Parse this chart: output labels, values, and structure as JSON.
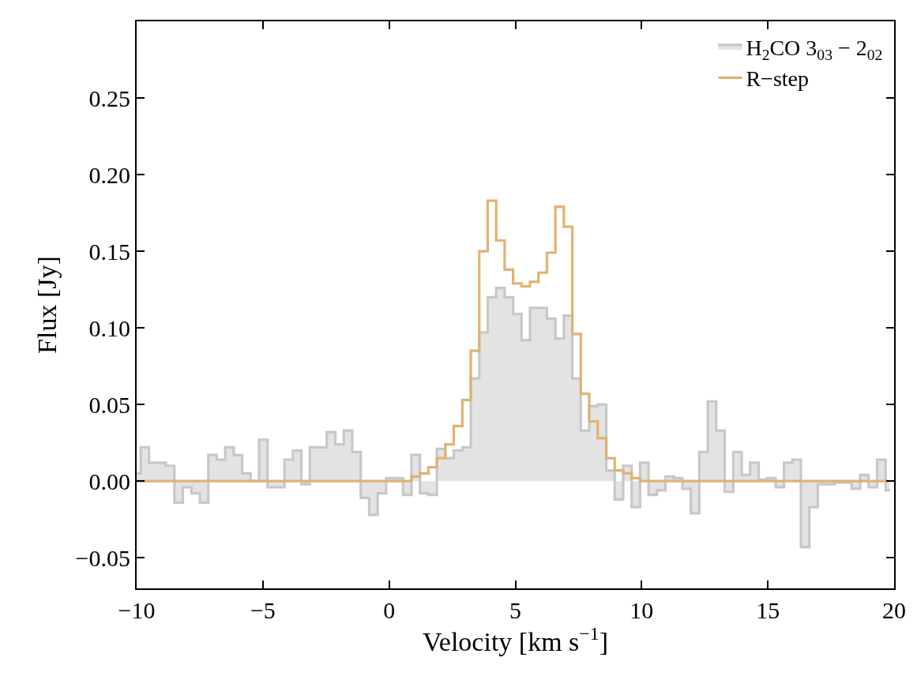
{
  "chart_data": {
    "type": "step",
    "xlabel": "Velocity [km s$^{−1}$]",
    "ylabel": "Flux [Jy]",
    "x": [
      -10,
      -9.68,
      -9.34,
      -9.01,
      -8.67,
      -8.34,
      -8.0,
      -7.66,
      -7.33,
      -6.99,
      -6.66,
      -6.32,
      -5.99,
      -5.65,
      -5.32,
      -4.98,
      -4.65,
      -4.31,
      -3.98,
      -3.64,
      -3.31,
      -2.97,
      -2.64,
      -2.3,
      -1.96,
      -1.63,
      -1.29,
      -0.96,
      -0.62,
      -0.29,
      0.05,
      0.38,
      0.72,
      1.05,
      1.39,
      1.72,
      2.06,
      2.39,
      2.73,
      3.07,
      3.4,
      3.74,
      4.07,
      4.41,
      4.74,
      5.08,
      5.41,
      5.75,
      6.08,
      6.42,
      6.75,
      7.09,
      7.42,
      7.76,
      8.09,
      8.43,
      8.77,
      9.1,
      9.44,
      9.77,
      10.11,
      10.44,
      10.78,
      11.11,
      11.45,
      11.78,
      12.12,
      12.45,
      12.79,
      13.12,
      13.46,
      13.8,
      14.13,
      14.47,
      14.8,
      15.14,
      15.47,
      15.81,
      16.14,
      16.48,
      16.81,
      17.15,
      17.48,
      17.82,
      18.15,
      18.49,
      18.82,
      19.16,
      19.5,
      19.83
    ],
    "series": [
      {
        "name": "H$_{2}$CO 3$_{03}$ − 2$_{02}$",
        "type": "area",
        "color": "#c8c8c8",
        "values": [
          0.005,
          0.022,
          0.012,
          0.012,
          0.01,
          -0.014,
          -0.004,
          -0.008,
          -0.014,
          0.017,
          0.014,
          0.022,
          0.017,
          0.005,
          0,
          0.027,
          -0.004,
          -0.004,
          0.014,
          0.02,
          -0.002,
          0.022,
          0.022,
          0.032,
          0.024,
          0.033,
          0.019,
          -0.011,
          -0.022,
          -0.008,
          0.002,
          0.002,
          -0.009,
          0.017,
          -0.008,
          -0.009,
          0.021,
          0.015,
          0.02,
          0.022,
          0.067,
          0.097,
          0.12,
          0.126,
          0.12,
          0.109,
          0.092,
          0.113,
          0.113,
          0.106,
          0.093,
          0.108,
          0.067,
          0.033,
          0.049,
          0.05,
          0.007,
          -0.012,
          0.01,
          -0.017,
          0.012,
          -0.009,
          -0.006,
          0.003,
          0.002,
          -0.005,
          -0.021,
          0.019,
          0.052,
          0.033,
          -0.007,
          0.019,
          0.004,
          0.012,
          0.001,
          0.002,
          -0.004,
          0.012,
          0.014,
          -0.043,
          -0.017,
          -0.002,
          -0.002,
          -0.001,
          -0.001,
          -0.005,
          0.004,
          -0.004,
          0.014,
          -0.006
        ]
      },
      {
        "name": "R−step",
        "color": "#e0b274",
        "values": [
          0,
          0,
          0,
          0,
          0,
          0,
          0,
          0,
          0,
          0,
          0,
          0,
          0,
          0,
          0,
          0,
          0,
          0,
          0,
          0,
          0,
          0,
          0,
          0,
          0,
          0,
          0,
          0,
          0,
          0,
          0,
          0,
          0,
          0.003,
          0.005,
          0.009,
          0.015,
          0.024,
          0.036,
          0.053,
          0.085,
          0.15,
          0.183,
          0.157,
          0.138,
          0.129,
          0.127,
          0.13,
          0.136,
          0.149,
          0.179,
          0.166,
          0.096,
          0.057,
          0.039,
          0.028,
          0.015,
          0.007,
          0.005,
          0.002,
          0,
          0,
          0,
          0,
          0,
          0,
          0,
          0,
          0,
          0,
          0,
          0,
          0,
          0,
          0,
          0,
          0,
          0,
          0,
          0,
          0,
          0,
          0,
          0,
          0,
          0,
          0,
          0,
          0,
          0
        ]
      }
    ],
    "xlim": [
      -10,
      20
    ],
    "xticks": [
      {
        "value": -10,
        "label": "−10"
      },
      {
        "value": -5,
        "label": "−5"
      },
      0,
      5,
      10,
      15,
      20
    ],
    "ylim": [
      -0.07,
      0.3
    ],
    "yticks": [
      {
        "value": -0.05,
        "label": "−0.05"
      },
      {
        "value": 0,
        "label": "0.00"
      },
      {
        "value": 0.05,
        "label": "0.05"
      },
      {
        "value": 0.1,
        "label": "0.10"
      },
      {
        "value": 0.15,
        "label": "0.15"
      },
      {
        "value": 0.2,
        "label": "0.20"
      },
      {
        "value": 0.25,
        "label": "0.25"
      }
    ],
    "legend": "top right"
  }
}
